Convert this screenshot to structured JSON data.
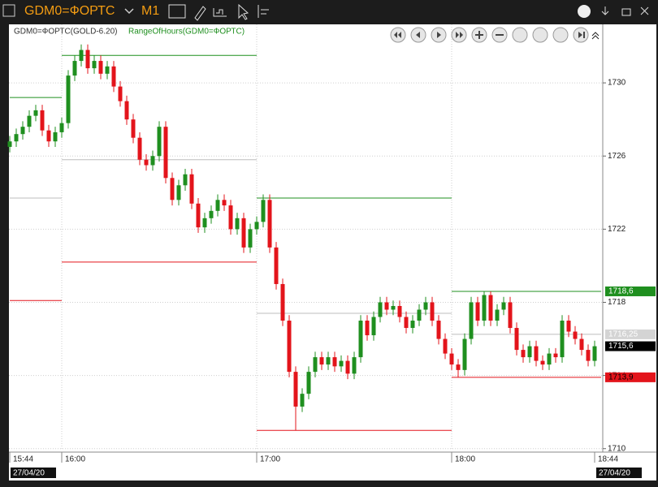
{
  "header": {
    "symbol": "GDM0=ФОРТС",
    "timeframe": "M1"
  },
  "chart_data": {
    "type": "candlestick",
    "legend": [
      "GDM0=ФОРТС(GOLD-6.20)",
      "RangeOfHours(GDM0=ФОРТС)"
    ],
    "up_color": "#1f8f1f",
    "down_color": "#e3141b",
    "xlim": [
      0,
      182
    ],
    "xticks": [
      {
        "value": 0,
        "label": "15:44"
      },
      {
        "value": 16,
        "label": "16:00"
      },
      {
        "value": 76,
        "label": "17:00"
      },
      {
        "value": 136,
        "label": "18:00"
      },
      {
        "value": 180,
        "label": "18:44"
      }
    ],
    "dates": [
      "27/04/20",
      "27/04/20"
    ],
    "ylim": [
      1709.9,
      1733.2
    ],
    "yticks": [
      1710,
      1714,
      1718,
      1722,
      1726,
      1730
    ],
    "grid": true,
    "x": [
      0,
      2,
      4,
      6,
      8,
      10,
      12,
      14,
      16,
      18,
      20,
      22,
      24,
      26,
      28,
      30,
      32,
      34,
      36,
      38,
      40,
      42,
      44,
      46,
      48,
      50,
      52,
      54,
      56,
      58,
      60,
      62,
      64,
      66,
      68,
      70,
      72,
      74,
      76,
      78,
      80,
      82,
      84,
      86,
      88,
      90,
      92,
      94,
      96,
      98,
      100,
      102,
      104,
      106,
      108,
      110,
      112,
      114,
      116,
      118,
      120,
      122,
      124,
      126,
      128,
      130,
      132,
      134,
      136,
      138,
      140,
      142,
      144,
      146,
      148,
      150,
      152,
      154,
      156,
      158,
      160,
      162,
      164,
      166,
      168,
      170,
      172,
      174,
      176,
      178,
      180
    ],
    "open": [
      1726.5,
      1726.8,
      1727.2,
      1727.6,
      1728.2,
      1728.5,
      1727.4,
      1726.8,
      1727.3,
      1727.8,
      1730.4,
      1731.2,
      1731.8,
      1730.8,
      1731.2,
      1730.5,
      1730.9,
      1729.8,
      1729.0,
      1728.0,
      1727.0,
      1725.8,
      1725.5,
      1726.0,
      1727.6,
      1724.8,
      1723.6,
      1724.4,
      1725.0,
      1723.4,
      1722.1,
      1722.6,
      1723.0,
      1723.6,
      1723.3,
      1722.0,
      1722.6,
      1721.0,
      1722.0,
      1722.4,
      1723.6,
      1721.0,
      1719.0,
      1717.0,
      1714.2,
      1712.3,
      1713.0,
      1714.2,
      1715.0,
      1714.6,
      1715.0,
      1714.5,
      1714.8,
      1714.1,
      1715.0,
      1717.0,
      1716.2,
      1717.2,
      1718.0,
      1717.6,
      1717.8,
      1717.2,
      1716.6,
      1717.0,
      1717.6,
      1718.0,
      1717.0,
      1716.0,
      1715.2,
      1714.6,
      1714.3,
      1716.0,
      1718.0,
      1717.0,
      1718.4,
      1717.0,
      1717.6,
      1718.0,
      1716.6,
      1715.4,
      1715.0,
      1715.6,
      1714.8,
      1714.6,
      1715.2,
      1715.0,
      1717.0,
      1716.4,
      1716.0,
      1715.4,
      1714.8
    ],
    "high": [
      1727.1,
      1727.5,
      1727.9,
      1728.5,
      1728.8,
      1728.8,
      1727.7,
      1727.6,
      1728.1,
      1730.7,
      1731.5,
      1732.1,
      1732.1,
      1731.5,
      1731.5,
      1731.2,
      1731.2,
      1730.1,
      1729.3,
      1728.3,
      1727.3,
      1726.1,
      1726.3,
      1727.9,
      1727.9,
      1725.1,
      1724.7,
      1725.3,
      1725.3,
      1723.7,
      1722.9,
      1723.3,
      1723.9,
      1723.9,
      1723.6,
      1722.9,
      1722.9,
      1722.3,
      1722.7,
      1723.9,
      1723.9,
      1721.3,
      1719.3,
      1717.3,
      1714.5,
      1713.3,
      1714.5,
      1715.3,
      1715.3,
      1715.3,
      1715.3,
      1715.1,
      1715.1,
      1715.3,
      1717.3,
      1717.3,
      1717.5,
      1718.3,
      1718.3,
      1718.1,
      1718.1,
      1717.5,
      1717.3,
      1717.9,
      1718.3,
      1718.3,
      1717.3,
      1716.3,
      1715.5,
      1714.9,
      1716.3,
      1718.3,
      1718.3,
      1718.6,
      1718.6,
      1717.9,
      1718.3,
      1718.3,
      1716.9,
      1715.7,
      1715.9,
      1715.9,
      1715.1,
      1715.5,
      1715.5,
      1717.3,
      1717.3,
      1716.7,
      1716.3,
      1715.7,
      1715.9
    ],
    "low": [
      1726.2,
      1726.5,
      1726.9,
      1727.3,
      1727.9,
      1727.1,
      1726.5,
      1726.5,
      1727.0,
      1727.5,
      1730.1,
      1730.9,
      1730.5,
      1730.5,
      1730.2,
      1730.2,
      1729.5,
      1728.7,
      1727.7,
      1726.7,
      1725.5,
      1725.2,
      1725.2,
      1725.7,
      1724.5,
      1723.3,
      1723.3,
      1724.1,
      1723.1,
      1721.8,
      1721.8,
      1722.3,
      1722.7,
      1723.0,
      1721.7,
      1721.7,
      1720.7,
      1720.7,
      1721.7,
      1722.1,
      1720.7,
      1718.7,
      1716.7,
      1713.9,
      1711.0,
      1712.0,
      1712.7,
      1713.9,
      1714.3,
      1714.3,
      1714.2,
      1714.2,
      1713.8,
      1713.8,
      1714.7,
      1715.9,
      1715.9,
      1716.9,
      1717.3,
      1717.3,
      1716.9,
      1716.3,
      1716.3,
      1716.7,
      1717.3,
      1716.7,
      1715.7,
      1714.9,
      1714.3,
      1713.9,
      1714.0,
      1715.7,
      1716.7,
      1716.7,
      1716.7,
      1716.7,
      1717.3,
      1716.3,
      1715.1,
      1714.7,
      1714.7,
      1714.5,
      1714.3,
      1714.3,
      1714.7,
      1714.7,
      1716.1,
      1715.7,
      1715.1,
      1714.5,
      1714.5
    ],
    "close": [
      1726.8,
      1727.2,
      1727.6,
      1728.2,
      1728.5,
      1727.4,
      1726.8,
      1727.3,
      1727.8,
      1730.4,
      1731.2,
      1731.8,
      1730.8,
      1731.2,
      1730.5,
      1730.9,
      1729.8,
      1729.0,
      1728.0,
      1727.0,
      1725.8,
      1725.5,
      1726.0,
      1727.6,
      1724.8,
      1723.6,
      1724.4,
      1725.0,
      1723.4,
      1722.1,
      1722.6,
      1723.0,
      1723.6,
      1723.3,
      1722.0,
      1722.6,
      1721.0,
      1722.0,
      1722.4,
      1723.6,
      1721.0,
      1719.0,
      1717.0,
      1714.2,
      1712.3,
      1713.0,
      1714.2,
      1715.0,
      1714.6,
      1715.0,
      1714.5,
      1714.8,
      1714.1,
      1715.0,
      1717.0,
      1716.2,
      1717.2,
      1718.0,
      1717.6,
      1717.8,
      1717.2,
      1716.6,
      1717.0,
      1717.6,
      1718.0,
      1717.0,
      1716.0,
      1715.2,
      1714.6,
      1714.3,
      1716.0,
      1718.0,
      1717.0,
      1718.4,
      1717.0,
      1717.6,
      1718.0,
      1716.6,
      1715.4,
      1715.0,
      1715.6,
      1714.8,
      1714.6,
      1715.2,
      1715.0,
      1717.0,
      1716.4,
      1716.0,
      1715.4,
      1714.8,
      1715.6
    ],
    "ranges": [
      {
        "start": 0,
        "end": 16,
        "high": 1729.2,
        "mid": 1723.7,
        "low": 1718.1
      },
      {
        "start": 16,
        "end": 76,
        "high": 1731.5,
        "mid": 1725.8,
        "low": 1720.2
      },
      {
        "start": 76,
        "end": 136,
        "high": 1723.7,
        "mid": 1717.4,
        "low": 1711.0
      },
      {
        "start": 136,
        "end": 182,
        "high": 1718.6,
        "mid": 1716.25,
        "low": 1713.9
      }
    ],
    "range_colors": {
      "high": "#1f8f1f",
      "mid": "#bdbdbd",
      "low": "#e3141b"
    },
    "price_labels": [
      {
        "value": 1718.6,
        "label": "1718,6",
        "color": "#1f8f1f",
        "text_color": "#ffffff"
      },
      {
        "value": 1716.25,
        "label": "1716,25",
        "color": "#d4d4d4",
        "text_color": "#ffffff"
      },
      {
        "value": 1715.6,
        "label": "1715,6",
        "color": "#000000",
        "text_color": "#ffffff"
      },
      {
        "value": 1713.9,
        "label": "1713,9",
        "color": "#e3141b",
        "text_color": "#000000"
      }
    ]
  }
}
